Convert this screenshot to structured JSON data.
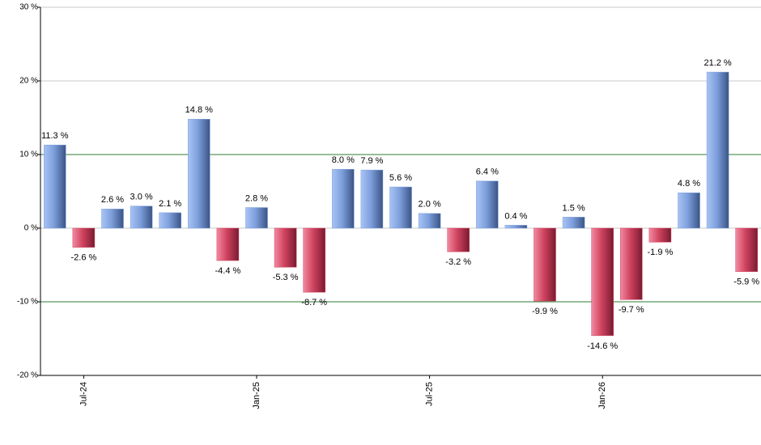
{
  "chart_data": {
    "type": "bar",
    "categories": [
      null,
      "Jul-24",
      null,
      null,
      null,
      null,
      null,
      "Jan-25",
      null,
      null,
      null,
      null,
      null,
      "Jul-25",
      null,
      null,
      null,
      null,
      null,
      "Jan-26",
      null,
      null,
      null,
      null,
      null
    ],
    "values": [
      11.3,
      -2.6,
      2.6,
      3.0,
      2.1,
      14.8,
      -4.4,
      2.8,
      -5.3,
      -8.7,
      8.0,
      7.9,
      5.6,
      2.0,
      -3.2,
      6.4,
      0.4,
      -9.9,
      1.5,
      -14.6,
      -9.7,
      -1.9,
      4.8,
      21.2,
      -5.9
    ],
    "value_labels": [
      "11.3 %",
      "-2.6 %",
      "2.6 %",
      "3.0 %",
      "2.1 %",
      "14.8 %",
      "-4.4 %",
      "2.8 %",
      "-5.3 %",
      "-8.7 %",
      "8.0 %",
      "7.9 %",
      "5.6 %",
      "2.0 %",
      "-3.2 %",
      "6.4 %",
      "0.4 %",
      "-9.9 %",
      "1.5 %",
      "-14.6 %",
      "-9.7 %",
      "-1.9 %",
      "4.8 %",
      "21.2 %",
      "-5.9 %"
    ],
    "positive_color": "#7d9fdc",
    "negative_color": "#d0435f",
    "ylim": [
      -20,
      30
    ],
    "yticks": [
      {
        "value": -20,
        "label": "-20 %"
      },
      {
        "value": -10,
        "label": "-10 %"
      },
      {
        "value": 0,
        "label": "0 %"
      },
      {
        "value": 10,
        "label": "10 %"
      },
      {
        "value": 20,
        "label": "20 %"
      },
      {
        "value": 30,
        "label": "30 %"
      }
    ],
    "grid": true,
    "reference_lines": [
      10,
      -10
    ],
    "reference_color": "#2e7d32"
  }
}
